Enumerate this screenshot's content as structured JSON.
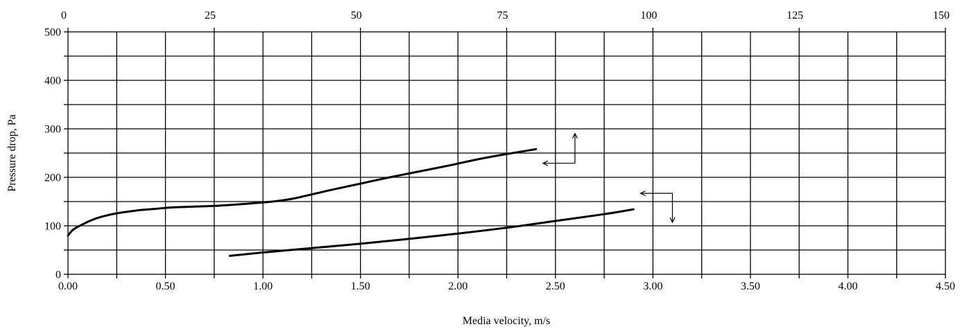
{
  "chart_data": {
    "type": "line",
    "xlabel": "Media velocity, m/s",
    "ylabel": "Pressure drop, Pa",
    "xlim": [
      0,
      4.5
    ],
    "ylim": [
      0,
      500
    ],
    "x2lim": [
      0,
      150
    ],
    "xticks": [
      "0.00",
      "0.50",
      "1.00",
      "1.50",
      "2.00",
      "2.50",
      "3.00",
      "3.50",
      "4.00",
      "4.50"
    ],
    "x2ticks": [
      "0",
      "25",
      "50",
      "75",
      "100",
      "125",
      "150"
    ],
    "yticks": [
      "0",
      "100",
      "200",
      "300",
      "400",
      "500"
    ],
    "grid": true,
    "series": [
      {
        "x_axis": "top",
        "x": [
          0,
          1,
          3,
          5,
          8,
          12,
          15,
          18,
          25,
          30,
          35,
          38,
          40,
          45,
          50,
          55,
          60,
          65,
          70,
          75,
          80
        ],
        "values": [
          80,
          93,
          106,
          116,
          125,
          132,
          135,
          138,
          141,
          145,
          150,
          155,
          160,
          174,
          187,
          200,
          212,
          224,
          237,
          248,
          258
        ]
      },
      {
        "x_axis": "bottom",
        "x": [
          0.83,
          1.0,
          1.25,
          1.5,
          1.75,
          2.0,
          2.25,
          2.5,
          2.75,
          2.9
        ],
        "values": [
          38,
          45,
          54,
          63,
          73,
          84,
          96,
          110,
          124,
          134
        ]
      }
    ],
    "annotations": [
      {
        "arrow": "series-1-to-top-axis",
        "corner_x": 2.6,
        "corner_y": 229
      },
      {
        "arrow": "series-2-to-bottom-axis",
        "corner_x": 3.1,
        "corner_y": 167
      }
    ]
  }
}
